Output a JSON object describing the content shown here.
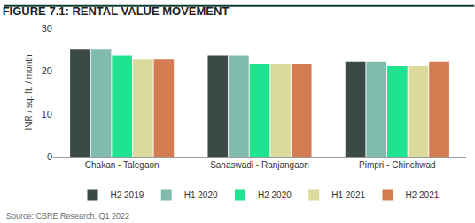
{
  "chart_data": {
    "type": "bar",
    "title": "FIGURE 7.1: RENTAL VALUE MOVEMENT",
    "y_label": "INR / sq. ft. / month",
    "annotations": [
      "Source: CBRE Research, Q1 2022"
    ],
    "categories": [
      "Chakan - Talegaon",
      "Sanaswadi - Ranjangaon",
      "Pimpri - Chinchwad"
    ],
    "series": [
      {
        "name": "H2 2019",
        "color": "#3b4a47",
        "values": [
          25.2,
          23.7,
          22.2
        ]
      },
      {
        "name": "H1 2020",
        "color": "#80bbad",
        "values": [
          25.2,
          23.7,
          22.2
        ]
      },
      {
        "name": "H2 2020",
        "color": "#1fe38f",
        "values": [
          23.7,
          21.7,
          21.1
        ]
      },
      {
        "name": "H1 2021",
        "color": "#dbd99b",
        "values": [
          22.7,
          21.7,
          21.1
        ]
      },
      {
        "name": "H2 2021",
        "color": "#d47b52",
        "values": [
          22.7,
          21.7,
          22.2
        ]
      }
    ],
    "ylim": [
      0,
      30
    ],
    "yticks": [
      0,
      10,
      20,
      30
    ],
    "grid": false,
    "legend": "bottom"
  }
}
